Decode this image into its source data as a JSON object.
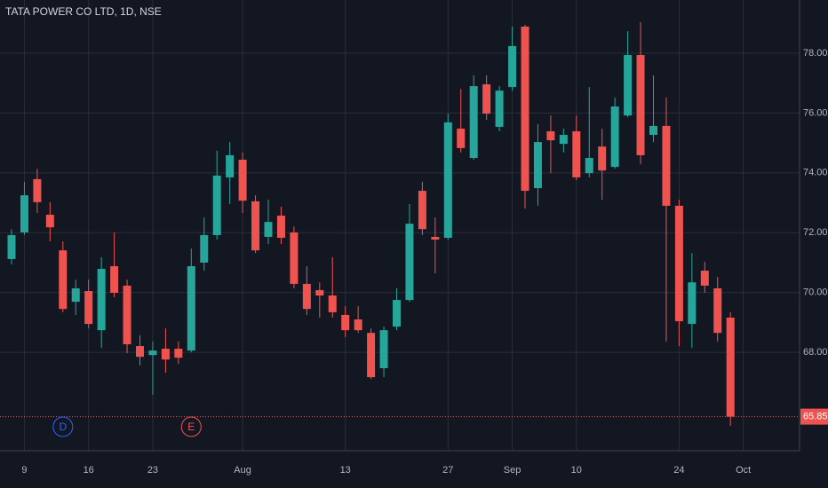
{
  "chart_data": {
    "type": "candlestick",
    "title": "TATA POWER CO LTD, 1D, NSE",
    "categories": [
      null,
      "9",
      null,
      null,
      null,
      null,
      "16",
      null,
      null,
      null,
      null,
      "23",
      null,
      null,
      null,
      null,
      null,
      null,
      "Aug",
      null,
      null,
      null,
      null,
      null,
      null,
      null,
      "13",
      null,
      null,
      null,
      null,
      null,
      null,
      null,
      "27",
      null,
      null,
      null,
      null,
      "Sep",
      null,
      null,
      null,
      null,
      "10",
      null,
      null,
      null,
      null,
      null,
      null,
      null,
      "24",
      null,
      null,
      null,
      null,
      "Oct"
    ],
    "open": [
      71.12,
      72.01,
      73.79,
      72.6,
      71.41,
      69.69,
      70.05,
      68.74,
      70.88,
      70.23,
      68.21,
      67.91,
      68.12,
      68.12,
      68.06,
      71.0,
      71.92,
      73.85,
      74.44,
      73.05,
      71.86,
      72.57,
      72.01,
      70.29,
      70.08,
      69.9,
      69.25,
      69.1,
      68.65,
      67.47,
      68.86,
      69.75,
      73.4,
      71.86,
      71.83,
      75.48,
      74.5,
      76.96,
      75.54,
      76.87,
      78.89,
      73.49,
      75.39,
      74.97,
      75.39,
      73.99,
      74.88,
      74.2,
      75.92,
      77.94,
      75.27,
      75.57,
      72.9,
      68.95,
      70.73,
      70.14,
      69.16,
      null
    ],
    "high": [
      72.12,
      73.7,
      74.14,
      73.02,
      71.71,
      70.43,
      70.43,
      71.18,
      72.01,
      70.43,
      68.57,
      68.36,
      68.8,
      68.36,
      71.47,
      72.51,
      74.74,
      75.03,
      74.68,
      73.25,
      73.1,
      72.87,
      72.21,
      70.88,
      70.34,
      71.18,
      69.54,
      69.54,
      68.8,
      68.86,
      70.14,
      72.96,
      73.7,
      72.51,
      75.98,
      76.81,
      77.26,
      77.26,
      76.9,
      78.89,
      78.95,
      75.63,
      75.92,
      75.48,
      75.92,
      76.87,
      75.48,
      76.52,
      78.74,
      79.04,
      77.26,
      76.52,
      73.1,
      71.32,
      71.03,
      70.52,
      69.34,
      null
    ],
    "low": [
      70.94,
      71.92,
      72.66,
      71.71,
      69.34,
      69.25,
      68.8,
      68.15,
      69.84,
      67.97,
      67.56,
      66.58,
      67.32,
      67.61,
      68.0,
      70.73,
      71.77,
      72.96,
      72.66,
      71.32,
      71.62,
      71.62,
      70.14,
      69.25,
      69.16,
      69.16,
      68.51,
      68.65,
      67.11,
      67.17,
      68.74,
      69.69,
      71.92,
      70.64,
      71.77,
      74.68,
      74.44,
      75.77,
      75.39,
      76.75,
      72.81,
      72.9,
      73.99,
      74.68,
      73.76,
      73.85,
      73.1,
      74.14,
      75.86,
      74.29,
      75.03,
      68.36,
      68.21,
      68.15,
      69.99,
      68.36,
      65.54,
      null
    ],
    "close": [
      71.92,
      73.25,
      73.02,
      72.18,
      69.45,
      70.14,
      68.95,
      70.79,
      69.99,
      68.27,
      67.85,
      68.06,
      67.76,
      67.82,
      70.88,
      71.92,
      73.91,
      74.59,
      73.07,
      71.41,
      72.36,
      71.83,
      70.29,
      69.45,
      69.9,
      69.34,
      68.74,
      68.74,
      67.17,
      68.74,
      69.75,
      72.3,
      72.12,
      71.77,
      75.69,
      74.83,
      76.9,
      75.98,
      76.75,
      78.24,
      73.4,
      75.03,
      75.09,
      75.27,
      73.85,
      74.5,
      74.08,
      76.22,
      77.94,
      74.59,
      75.57,
      72.9,
      69.04,
      70.34,
      70.23,
      68.65,
      65.85,
      null
    ],
    "events": [
      null,
      null,
      null,
      null,
      {
        "label": "D",
        "color": "#2962ff"
      },
      null,
      null,
      null,
      null,
      null,
      null,
      null,
      null,
      null,
      {
        "label": "E",
        "color": "#ef5350"
      },
      null,
      null,
      null,
      null,
      null,
      null,
      null,
      null,
      null,
      null,
      null,
      null,
      null,
      null,
      null,
      null,
      null,
      null,
      null,
      null,
      null,
      null,
      null,
      null,
      null,
      null,
      null,
      null,
      null,
      null,
      null,
      null,
      null,
      null,
      null,
      null,
      null,
      null,
      null,
      null,
      null,
      null,
      null
    ],
    "up_color": "#26a69a",
    "down_color": "#ef5350",
    "ylim": [
      64.71,
      79.78
    ],
    "yticks": [
      {
        "value": 68,
        "label": "68.00"
      },
      {
        "value": 70,
        "label": "70.00"
      },
      {
        "value": 72,
        "label": "72.00"
      },
      {
        "value": 74,
        "label": "74.00"
      },
      {
        "value": 76,
        "label": "76.00"
      },
      {
        "value": 78,
        "label": "78.00"
      }
    ],
    "grid": true
  }
}
